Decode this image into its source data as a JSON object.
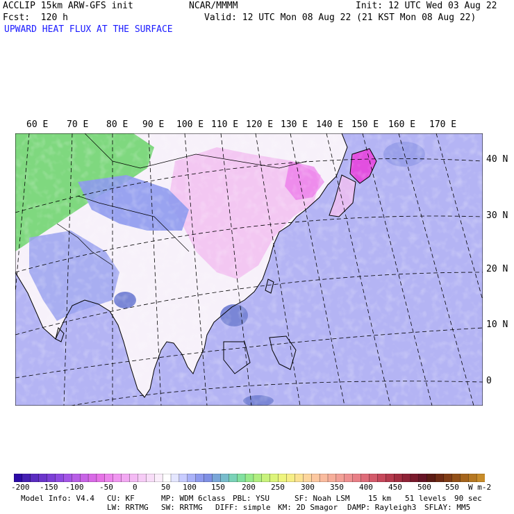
{
  "header": {
    "model": "ACCLIP 15km ARW-GFS init",
    "org": "NCAR/MMMM",
    "init": "Init: 12 UTC Wed 03 Aug 22",
    "fcst": "Fcst:  120 h",
    "valid": "Valid: 12 UTC Mon 08 Aug 22 (21 KST Mon 08 Aug 22)",
    "field": "UPWARD HEAT FLUX AT THE SURFACE"
  },
  "map": {
    "lon_labels": [
      "60 E",
      "70 E",
      "80 E",
      "90 E",
      "100 E",
      "110 E",
      "120 E",
      "130 E",
      "140 E",
      "150 E",
      "160 E",
      "170 E"
    ],
    "lat_labels": [
      "40 N",
      "30 N",
      "20 N",
      "10 N",
      "0"
    ],
    "colors": {
      "ocean": "#b4b4f4",
      "land_neutral": "#f7f1fa",
      "high_flux_green": "#7fd87f",
      "pink": "#f2bff0",
      "magenta": "#ea5be8",
      "blue_patch": "#7a86d6",
      "coast": "#000000"
    }
  },
  "colorbar": {
    "unit": "W m-2",
    "tick_labels": [
      "-200",
      "-150",
      "-100",
      "-50",
      "0",
      "50",
      "100",
      "150",
      "200",
      "250",
      "300",
      "350",
      "400",
      "450",
      "500",
      "550"
    ],
    "colors": [
      "#2c0ba6",
      "#4520b3",
      "#5a2cc0",
      "#6b35cb",
      "#7c3fd6",
      "#8e4ae0",
      "#a455e6",
      "#b85ee6",
      "#c864e6",
      "#d86ae6",
      "#e673e6",
      "#ec85ec",
      "#f096f0",
      "#f2a8f2",
      "#f4baf4",
      "#f6ccf6",
      "#f8ddf8",
      "#fbeefb",
      "#ffffff",
      "#e4e6ff",
      "#c8ccff",
      "#aab2f8",
      "#8e9aee",
      "#7f90e4",
      "#7aa6d8",
      "#78bccc",
      "#7ad2b8",
      "#82e0a0",
      "#98ea8a",
      "#b0ee80",
      "#c8f27c",
      "#dcf47a",
      "#eef47e",
      "#f6ee86",
      "#fbe292",
      "#fcd59c",
      "#fcc8a0",
      "#f9bb9e",
      "#f6ae9a",
      "#f2a096",
      "#ee9090",
      "#e87f86",
      "#de6c79",
      "#d35a6a",
      "#c6485b",
      "#b53a4d",
      "#a22d40",
      "#8e2236",
      "#7a1a2c",
      "#661526",
      "#5c1b14",
      "#6e2a14",
      "#803c16",
      "#925018",
      "#a4641c",
      "#b67822",
      "#c88c2a"
    ]
  },
  "model_info": {
    "line1": [
      "Model Info: V4.4",
      "CU: KF",
      "MP: WDM 6class",
      "PBL: YSU",
      "SF: Noah LSM",
      "15 km",
      "51 levels",
      "90 sec"
    ],
    "line2": [
      "LW: RRTMG",
      "SW: RRTMG",
      "DIFF: simple",
      "KM: 2D Smagor",
      "DAMP: Rayleigh3",
      "SFLAY: MM5"
    ]
  }
}
